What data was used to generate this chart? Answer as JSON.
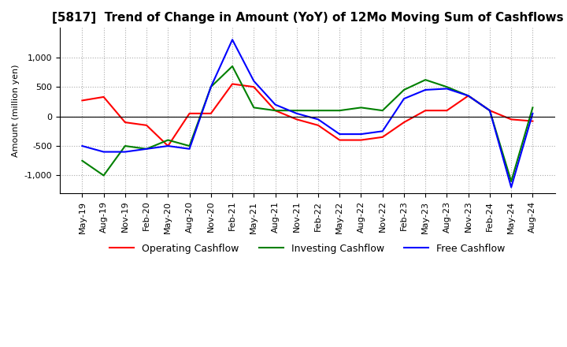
{
  "title": "[5817]  Trend of Change in Amount (YoY) of 12Mo Moving Sum of Cashflows",
  "ylabel": "Amount (million yen)",
  "x_labels": [
    "May-19",
    "Aug-19",
    "Nov-19",
    "Feb-20",
    "May-20",
    "Aug-20",
    "Nov-20",
    "Feb-21",
    "May-21",
    "Aug-21",
    "Nov-21",
    "Feb-22",
    "May-22",
    "Aug-22",
    "Nov-22",
    "Feb-23",
    "May-23",
    "Aug-23",
    "Nov-23",
    "Feb-24",
    "May-24",
    "Aug-24"
  ],
  "operating": [
    270,
    330,
    -100,
    -150,
    -500,
    50,
    50,
    550,
    500,
    100,
    -50,
    -150,
    -400,
    -400,
    -350,
    -100,
    100,
    100,
    350,
    100,
    -50,
    -80
  ],
  "investing": [
    -750,
    -1000,
    -500,
    -550,
    -400,
    -500,
    500,
    850,
    150,
    100,
    100,
    100,
    100,
    150,
    100,
    450,
    620,
    500,
    350,
    100,
    -1100,
    150
  ],
  "free": [
    -500,
    -600,
    -600,
    -550,
    -500,
    -550,
    500,
    1300,
    600,
    200,
    50,
    -50,
    -300,
    -300,
    -250,
    300,
    450,
    470,
    350,
    100,
    -1200,
    50
  ],
  "colors": {
    "operating": "#ff0000",
    "investing": "#008000",
    "free": "#0000ff"
  },
  "ylim": [
    -1300,
    1500
  ],
  "yticks": [
    -1000,
    -500,
    0,
    500,
    1000
  ],
  "background_color": "#ffffff",
  "grid_color": "#aaaaaa",
  "title_fontsize": 11,
  "legend_fontsize": 9,
  "axis_fontsize": 8
}
